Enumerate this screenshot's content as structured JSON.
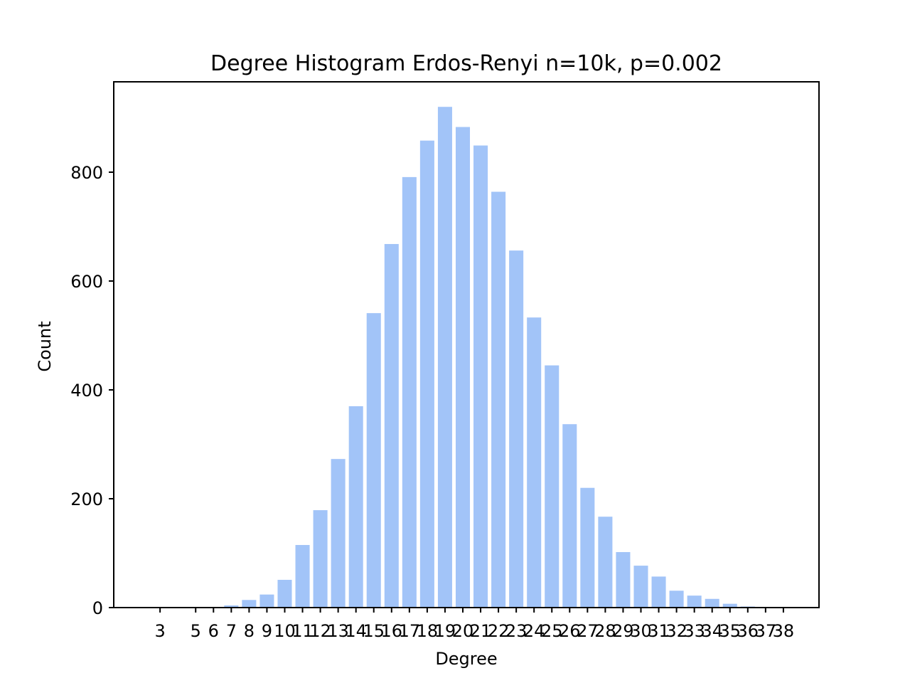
{
  "chart_data": {
    "type": "bar",
    "title": "Degree Histogram Erdos-Renyi n=10k, p=0.002",
    "xlabel": "Degree",
    "ylabel": "Count",
    "bar_color": "#a2c4f8",
    "grid": false,
    "legend": "none",
    "x": [
      3,
      5,
      6,
      7,
      8,
      9,
      10,
      11,
      12,
      13,
      14,
      15,
      16,
      17,
      18,
      19,
      20,
      21,
      22,
      23,
      24,
      25,
      26,
      27,
      28,
      29,
      30,
      31,
      32,
      33,
      34,
      35,
      36,
      37,
      38
    ],
    "values": [
      1,
      1,
      1,
      4,
      14,
      24,
      51,
      115,
      179,
      273,
      370,
      541,
      668,
      791,
      858,
      920,
      883,
      849,
      764,
      656,
      533,
      445,
      337,
      220,
      167,
      102,
      77,
      57,
      31,
      22,
      16,
      7,
      2,
      1,
      1
    ],
    "xlim": [
      0.4,
      40.0
    ],
    "ylim": [
      0,
      966
    ],
    "yticks": [
      0,
      200,
      400,
      600,
      800
    ]
  }
}
